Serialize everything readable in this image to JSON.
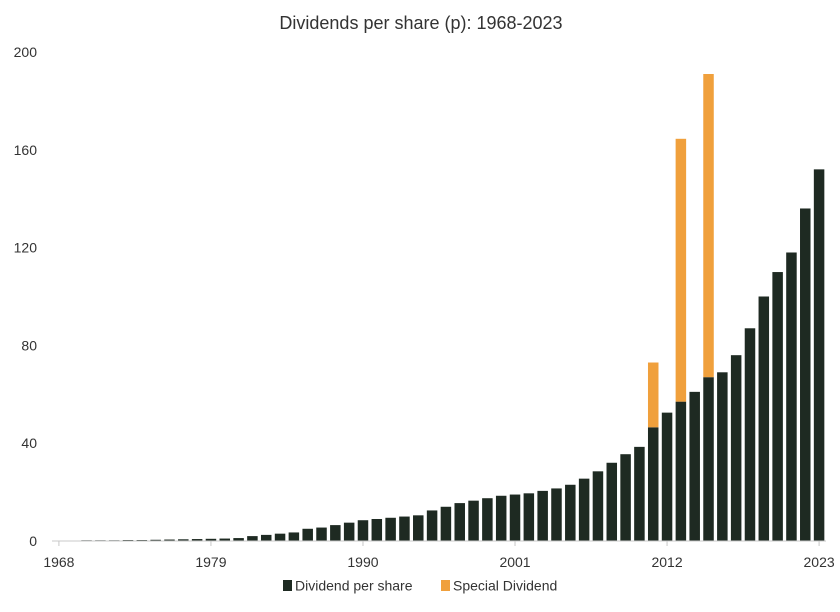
{
  "chart_data": {
    "type": "bar",
    "stacked": true,
    "title": "Dividends per share (p): 1968-2023",
    "xlabel": "",
    "ylabel": "",
    "ylim": [
      0,
      200
    ],
    "yticks": [
      0,
      40,
      80,
      120,
      160,
      200
    ],
    "xtick_labels": [
      "1968",
      "1979",
      "1990",
      "2001",
      "2012",
      "2023"
    ],
    "grid": false,
    "legend_position": "bottom-center",
    "categories": [
      1968,
      1969,
      1970,
      1971,
      1972,
      1973,
      1974,
      1975,
      1976,
      1977,
      1978,
      1979,
      1980,
      1981,
      1982,
      1983,
      1984,
      1985,
      1986,
      1987,
      1988,
      1989,
      1990,
      1991,
      1992,
      1993,
      1994,
      1995,
      1996,
      1997,
      1998,
      1999,
      2000,
      2001,
      2002,
      2003,
      2004,
      2005,
      2006,
      2007,
      2008,
      2009,
      2010,
      2011,
      2012,
      2013,
      2014,
      2015,
      2016,
      2017,
      2018,
      2019,
      2020,
      2021,
      2022,
      2023
    ],
    "series": [
      {
        "name": "Dividend per share",
        "color": "#1e2a22",
        "values": [
          0.2,
          0.2,
          0.3,
          0.3,
          0.3,
          0.4,
          0.4,
          0.5,
          0.6,
          0.7,
          0.8,
          0.9,
          1.0,
          1.2,
          2.0,
          2.5,
          3.0,
          3.5,
          5.0,
          5.5,
          6.5,
          7.5,
          8.5,
          9.0,
          9.5,
          10.0,
          10.5,
          12.5,
          14.0,
          15.5,
          16.5,
          17.5,
          18.5,
          19.0,
          19.5,
          20.5,
          21.5,
          23.0,
          25.5,
          28.5,
          32.0,
          35.5,
          38.5,
          46.5,
          52.5,
          57.0,
          61.0,
          67.0,
          69.0,
          76.0,
          87.0,
          100.0,
          110.0,
          118.0,
          136.0,
          152.0
        ]
      },
      {
        "name": "Special Dividend",
        "color": "#f0a03c",
        "values": [
          0,
          0,
          0,
          0,
          0,
          0,
          0,
          0,
          0,
          0,
          0,
          0,
          0,
          0,
          0,
          0,
          0,
          0,
          0,
          0,
          0,
          0,
          0,
          0,
          0,
          0,
          0,
          0,
          0,
          0,
          0,
          0,
          0,
          0,
          0,
          0,
          0,
          0,
          0,
          0,
          0,
          0,
          0,
          26.5,
          0,
          107.5,
          0,
          124.0,
          0,
          0,
          0,
          0,
          0,
          0,
          0,
          0
        ]
      }
    ]
  }
}
